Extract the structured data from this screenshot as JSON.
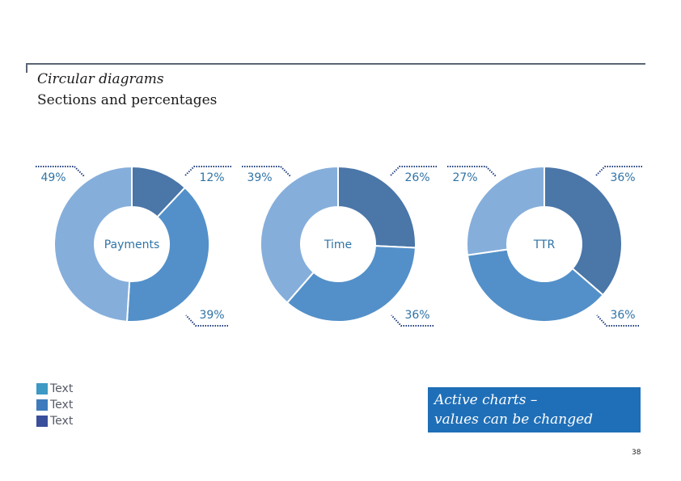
{
  "header": {
    "title": "Circular diagrams",
    "subtitle": "Sections and percentages"
  },
  "chart_data": [
    {
      "type": "pie",
      "variant": "donut",
      "title": "",
      "center_label": "Payments",
      "segments": [
        {
          "value": 12,
          "label": "12%",
          "color": "#4a76a8"
        },
        {
          "value": 39,
          "label": "39%",
          "color": "#5390c9"
        },
        {
          "value": 49,
          "label": "49%",
          "color": "#85aedb"
        }
      ]
    },
    {
      "type": "pie",
      "variant": "donut",
      "title": "",
      "center_label": "Time",
      "segments": [
        {
          "value": 26,
          "label": "26%",
          "color": "#4a76a8"
        },
        {
          "value": 36,
          "label": "36%",
          "color": "#5390c9"
        },
        {
          "value": 39,
          "label": "39%",
          "color": "#85aedb"
        }
      ]
    },
    {
      "type": "pie",
      "variant": "donut",
      "title": "",
      "center_label": "TTR",
      "segments": [
        {
          "value": 36,
          "label": "36%",
          "color": "#4a76a8"
        },
        {
          "value": 36,
          "label": "36%",
          "color": "#5390c9"
        },
        {
          "value": 27,
          "label": "27%",
          "color": "#85aedb"
        }
      ]
    }
  ],
  "legend": {
    "items": [
      {
        "label": "Text",
        "color": "#3e99c4"
      },
      {
        "label": "Text",
        "color": "#3d7bbd"
      },
      {
        "label": "Text",
        "color": "#3a4f9b"
      }
    ]
  },
  "callout": {
    "line1": "Active charts –",
    "line2": "values can be changed"
  },
  "footer": {
    "page_number": "38"
  },
  "colors": {
    "label_text": "#2f73a6",
    "leader": "#1f3c7c",
    "header_rule": "#5b6675"
  }
}
